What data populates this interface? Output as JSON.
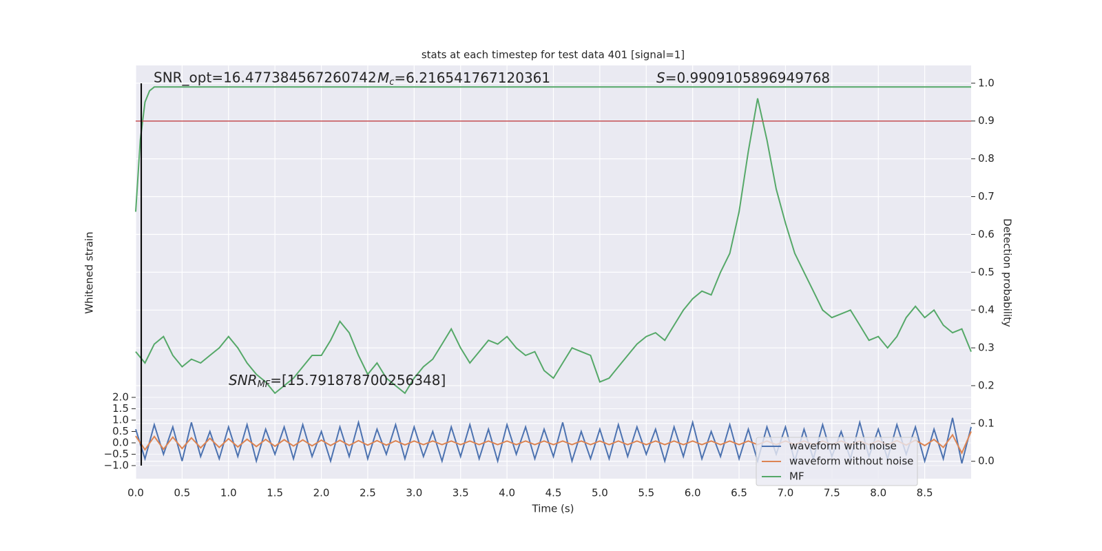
{
  "chart_data": {
    "type": "line",
    "title": "stats at each timestep for test data 401 [signal=1]",
    "xlabel": "Time (s)",
    "ylabel": "Whitened strain",
    "y2label": "Detection probability",
    "annotations": [
      {
        "text": "SNR_opt=16.477384567260742"
      },
      {
        "symbol": "M",
        "subscript": "c",
        "text": "=6.216541767120361"
      },
      {
        "symbol": "S",
        "text": "=0.9909105896949768"
      },
      {
        "symbol": "SNR",
        "subscript": "MF",
        "text": "=[15.791878700256348]"
      }
    ],
    "xlim": [
      0,
      9.0
    ],
    "xticks": [
      {
        "value": 0,
        "label": "0.0"
      },
      0.5,
      {
        "value": 1,
        "label": "1.0"
      },
      1.5,
      {
        "value": 2,
        "label": "2.0"
      },
      2.5,
      {
        "value": 3,
        "label": "3.0"
      },
      3.5,
      {
        "value": 4,
        "label": "4.0"
      },
      4.5,
      {
        "value": 5,
        "label": "5.0"
      },
      5.5,
      {
        "value": 6,
        "label": "6.0"
      },
      6.5,
      {
        "value": 7,
        "label": "7.0"
      },
      7.5,
      {
        "value": 8,
        "label": "8.0"
      },
      8.5
    ],
    "ylim": [
      -1.576,
      16.6
    ],
    "yticks": [
      {
        "value": -1,
        "label": "−1.0"
      },
      {
        "value": -0.5,
        "label": "−0.5"
      },
      {
        "value": 0,
        "label": "0.0"
      },
      0.5,
      {
        "value": 1,
        "label": "1.0"
      },
      1.5,
      {
        "value": 2,
        "label": "2.0"
      }
    ],
    "y2lim": [
      -0.046,
      1.047
    ],
    "y2ticks": [
      {
        "value": 0,
        "label": "0.0"
      },
      0.1,
      0.2,
      0.3,
      0.4,
      0.5,
      0.6,
      0.7,
      0.8,
      0.9,
      {
        "value": 1,
        "label": "1.0"
      }
    ],
    "grid": true,
    "legend": "lower right",
    "x": [
      0,
      0.1,
      0.2,
      0.3,
      0.4,
      0.5,
      0.6,
      0.7,
      0.8,
      0.9,
      1.0,
      1.1,
      1.2,
      1.3,
      1.4,
      1.5,
      1.6,
      1.7,
      1.8,
      1.9,
      2.0,
      2.1,
      2.2,
      2.3,
      2.4,
      2.5,
      2.6,
      2.7,
      2.8,
      2.9,
      3.0,
      3.1,
      3.2,
      3.3,
      3.4,
      3.5,
      3.6,
      3.7,
      3.8,
      3.9,
      4.0,
      4.1,
      4.2,
      4.3,
      4.4,
      4.5,
      4.6,
      4.7,
      4.8,
      4.9,
      5.0,
      5.1,
      5.2,
      5.3,
      5.4,
      5.5,
      5.6,
      5.7,
      5.8,
      5.9,
      6.0,
      6.1,
      6.2,
      6.3,
      6.4,
      6.5,
      6.6,
      6.7,
      6.8,
      6.9,
      7.0,
      7.1,
      7.2,
      7.3,
      7.4,
      7.5,
      7.6,
      7.7,
      7.8,
      7.9,
      8.0,
      8.1,
      8.2,
      8.3,
      8.4,
      8.5,
      8.6,
      8.7,
      8.8,
      8.9,
      9.0
    ],
    "series": [
      {
        "name": "waveform with noise",
        "color": "#4c72b0",
        "values": [
          0.6,
          -0.7,
          0.8,
          -0.5,
          0.7,
          -0.8,
          0.9,
          -0.6,
          0.5,
          -0.7,
          0.7,
          -0.6,
          0.8,
          -0.8,
          0.6,
          -0.5,
          0.7,
          -0.7,
          0.8,
          -0.6,
          0.5,
          -0.8,
          0.7,
          -0.6,
          0.9,
          -0.7,
          0.6,
          -0.5,
          0.8,
          -0.7,
          0.7,
          -0.6,
          0.5,
          -0.8,
          0.7,
          -0.6,
          0.8,
          -0.7,
          0.6,
          -0.8,
          0.8,
          -0.5,
          0.7,
          -0.7,
          0.6,
          -0.6,
          0.9,
          -0.8,
          0.5,
          -0.7,
          0.6,
          -0.7,
          0.8,
          -0.6,
          0.7,
          -0.5,
          0.6,
          -0.8,
          0.7,
          -0.6,
          0.9,
          -0.7,
          0.5,
          -0.6,
          0.8,
          -0.7,
          0.6,
          -0.8,
          0.7,
          -0.5,
          0.7,
          -0.8,
          0.6,
          -0.7,
          0.8,
          -0.6,
          0.5,
          -0.7,
          0.9,
          -0.6,
          0.6,
          -0.7,
          0.8,
          -0.5,
          0.7,
          -0.8,
          0.6,
          -0.7,
          1.1,
          -0.9,
          0.7
        ]
      },
      {
        "name": "waveform without noise",
        "color": "#dd8452",
        "values": [
          0.3,
          -0.3,
          0.28,
          -0.28,
          0.25,
          -0.25,
          0.22,
          -0.22,
          0.2,
          -0.2,
          0.18,
          -0.18,
          0.16,
          -0.16,
          0.15,
          -0.15,
          0.14,
          -0.14,
          0.13,
          -0.13,
          0.12,
          -0.12,
          0.11,
          -0.11,
          0.1,
          -0.1,
          0.1,
          -0.1,
          0.09,
          -0.09,
          0.08,
          -0.08,
          0.08,
          -0.08,
          0.08,
          -0.08,
          0.08,
          -0.08,
          0.08,
          -0.08,
          0.08,
          -0.08,
          0.08,
          -0.08,
          0.08,
          -0.08,
          0.08,
          -0.08,
          0.08,
          -0.08,
          0.08,
          -0.08,
          0.08,
          -0.08,
          0.08,
          -0.08,
          0.08,
          -0.08,
          0.08,
          -0.08,
          0.08,
          -0.08,
          0.08,
          -0.08,
          0.08,
          -0.08,
          0.08,
          -0.08,
          0.08,
          -0.08,
          0.08,
          -0.08,
          0.08,
          -0.08,
          0.08,
          -0.08,
          0.08,
          -0.08,
          0.08,
          -0.08,
          0.09,
          -0.09,
          0.1,
          -0.1,
          0.12,
          -0.12,
          0.15,
          -0.2,
          0.35,
          -0.45,
          0.5
        ]
      },
      {
        "name": "MF",
        "color": "#55a868",
        "axis": "y2",
        "values": [
          0.29,
          0.26,
          0.31,
          0.33,
          0.28,
          0.25,
          0.27,
          0.26,
          0.28,
          0.3,
          0.33,
          0.3,
          0.26,
          0.23,
          0.21,
          0.18,
          0.2,
          0.22,
          0.25,
          0.28,
          0.28,
          0.32,
          0.37,
          0.34,
          0.28,
          0.23,
          0.26,
          0.22,
          0.2,
          0.18,
          0.22,
          0.25,
          0.27,
          0.31,
          0.35,
          0.3,
          0.26,
          0.29,
          0.32,
          0.31,
          0.33,
          0.3,
          0.28,
          0.29,
          0.24,
          0.22,
          0.26,
          0.3,
          0.29,
          0.28,
          0.21,
          0.22,
          0.25,
          0.28,
          0.31,
          0.33,
          0.34,
          0.32,
          0.36,
          0.4,
          0.43,
          0.45,
          0.44,
          0.5,
          0.55,
          0.66,
          0.82,
          0.96,
          0.85,
          0.72,
          0.63,
          0.55,
          0.5,
          0.45,
          0.4,
          0.38,
          0.39,
          0.4,
          0.36,
          0.32,
          0.33,
          0.3,
          0.33,
          0.38,
          0.41,
          0.38,
          0.4,
          0.36,
          0.34,
          0.35,
          0.29
        ]
      },
      {
        "color": "#55a868",
        "axis": "y2",
        "x": [
          0,
          0.05,
          0.1,
          0.15,
          0.2,
          0.3,
          9.0
        ],
        "values": [
          0.66,
          0.85,
          0.95,
          0.98,
          0.99,
          0.99,
          0.99
        ]
      }
    ],
    "hline": {
      "value": 0.9,
      "color": "#c44e52",
      "axis": "y2"
    },
    "vline": {
      "value": 0.06,
      "color": "#000000"
    }
  }
}
